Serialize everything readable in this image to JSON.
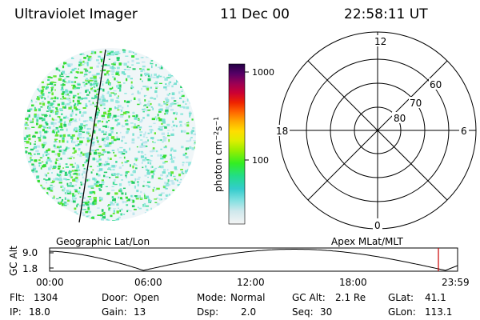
{
  "header": {
    "title": "Ultraviolet Imager",
    "date": "11 Dec 00",
    "time": "22:58:11 UT"
  },
  "colorbar": {
    "ticks": [
      "1000",
      "100"
    ],
    "unit": "photon cm",
    "unit_exp1": "−2",
    "unit_mid": "s",
    "unit_exp2": "−1"
  },
  "polar_grid": {
    "mlt_labels": {
      "top": "12",
      "bottom": "0",
      "left": "18",
      "right": "6"
    },
    "lat_labels": [
      "60",
      "70",
      "80"
    ]
  },
  "panel_labels": {
    "left": "Geographic Lat/Lon",
    "right": "Apex MLat/MLT"
  },
  "altitude_plot": {
    "ylabel": "GC Alt",
    "y_ticks": [
      "9.0",
      "1.8"
    ],
    "x_ticks": [
      "00:00",
      "06:00",
      "12:00",
      "18:00",
      "23:59"
    ],
    "current_time_marker": "22:58"
  },
  "status": {
    "flt_label": "Flt:",
    "flt_value": "1304",
    "door_label": "Door:",
    "door_value": "Open",
    "mode_label": "Mode:",
    "mode_value": "Normal",
    "gcalt_label": "GC Alt:",
    "gcalt_value": "2.1 Re",
    "glat_label": "GLat:",
    "glat_value": "41.1",
    "ip_label": "IP:",
    "ip_value": "18.0",
    "gain_label": "Gain:",
    "gain_value": "13",
    "dsp_label": "Dsp:",
    "dsp_value": "2.0",
    "seq_label": "Seq:",
    "seq_value": "30",
    "glon_label": "GLon:",
    "glon_value": "113.1"
  }
}
